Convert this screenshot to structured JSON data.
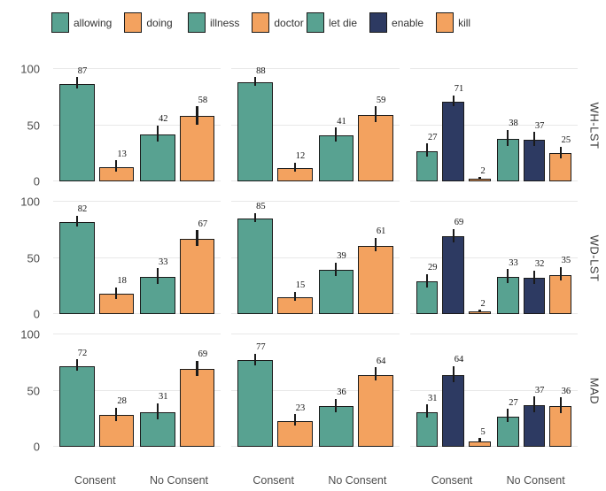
{
  "chart_data": {
    "type": "bar",
    "title": "",
    "xlabel": "",
    "ylabel": "",
    "ylim": [
      0,
      100
    ],
    "y_ticks": [
      0,
      50,
      100
    ],
    "grid": true,
    "x_categories": [
      "Consent",
      "No Consent"
    ],
    "facet_row_labels": [
      "WH-LST",
      "WD-LST",
      "MAD"
    ],
    "legend_groups": [
      {
        "entries": [
          {
            "label": "allowing",
            "color": "#58A291"
          },
          {
            "label": "doing",
            "color": "#F3A25F"
          }
        ]
      },
      {
        "entries": [
          {
            "label": "illness",
            "color": "#58A291"
          },
          {
            "label": "doctor",
            "color": "#F3A25F"
          }
        ]
      },
      {
        "entries": [
          {
            "label": "let die",
            "color": "#58A291"
          },
          {
            "label": "enable",
            "color": "#2D3A62"
          },
          {
            "label": "kill",
            "color": "#F3A25F"
          }
        ]
      }
    ],
    "panels": [
      {
        "facet_row": "WH-LST",
        "facet_col": 0,
        "groups": [
          {
            "category": "Consent",
            "bars": [
              {
                "series": "allowing",
                "value": 87,
                "error": 5
              },
              {
                "series": "doing",
                "value": 13,
                "error": 5
              }
            ]
          },
          {
            "category": "No Consent",
            "bars": [
              {
                "series": "allowing",
                "value": 42,
                "error": 7
              },
              {
                "series": "doing",
                "value": 58,
                "error": 8
              }
            ]
          }
        ]
      },
      {
        "facet_row": "WH-LST",
        "facet_col": 1,
        "groups": [
          {
            "category": "Consent",
            "bars": [
              {
                "series": "illness",
                "value": 88,
                "error": 4
              },
              {
                "series": "doctor",
                "value": 12,
                "error": 4
              }
            ]
          },
          {
            "category": "No Consent",
            "bars": [
              {
                "series": "illness",
                "value": 41,
                "error": 6
              },
              {
                "series": "doctor",
                "value": 59,
                "error": 7
              }
            ]
          }
        ]
      },
      {
        "facet_row": "WH-LST",
        "facet_col": 2,
        "groups": [
          {
            "category": "Consent",
            "bars": [
              {
                "series": "let die",
                "value": 27,
                "error": 6
              },
              {
                "series": "enable",
                "value": 71,
                "error": 5
              },
              {
                "series": "kill",
                "value": 2,
                "error": 1
              }
            ]
          },
          {
            "category": "No Consent",
            "bars": [
              {
                "series": "let die",
                "value": 38,
                "error": 7
              },
              {
                "series": "enable",
                "value": 37,
                "error": 6
              },
              {
                "series": "kill",
                "value": 25,
                "error": 5
              }
            ]
          }
        ]
      },
      {
        "facet_row": "WD-LST",
        "facet_col": 0,
        "groups": [
          {
            "category": "Consent",
            "bars": [
              {
                "series": "allowing",
                "value": 82,
                "error": 5
              },
              {
                "series": "doing",
                "value": 18,
                "error": 5
              }
            ]
          },
          {
            "category": "No Consent",
            "bars": [
              {
                "series": "allowing",
                "value": 33,
                "error": 7
              },
              {
                "series": "doing",
                "value": 67,
                "error": 7
              }
            ]
          }
        ]
      },
      {
        "facet_row": "WD-LST",
        "facet_col": 1,
        "groups": [
          {
            "category": "Consent",
            "bars": [
              {
                "series": "illness",
                "value": 85,
                "error": 4
              },
              {
                "series": "doctor",
                "value": 15,
                "error": 4
              }
            ]
          },
          {
            "category": "No Consent",
            "bars": [
              {
                "series": "illness",
                "value": 39,
                "error": 6
              },
              {
                "series": "doctor",
                "value": 61,
                "error": 6
              }
            ]
          }
        ]
      },
      {
        "facet_row": "WD-LST",
        "facet_col": 2,
        "groups": [
          {
            "category": "Consent",
            "bars": [
              {
                "series": "let die",
                "value": 29,
                "error": 6
              },
              {
                "series": "enable",
                "value": 69,
                "error": 6
              },
              {
                "series": "kill",
                "value": 2,
                "error": 1
              }
            ]
          },
          {
            "category": "No Consent",
            "bars": [
              {
                "series": "let die",
                "value": 33,
                "error": 6
              },
              {
                "series": "enable",
                "value": 32,
                "error": 6
              },
              {
                "series": "kill",
                "value": 35,
                "error": 6
              }
            ]
          }
        ]
      },
      {
        "facet_row": "MAD",
        "facet_col": 0,
        "groups": [
          {
            "category": "Consent",
            "bars": [
              {
                "series": "allowing",
                "value": 72,
                "error": 5
              },
              {
                "series": "doing",
                "value": 28,
                "error": 6
              }
            ]
          },
          {
            "category": "No Consent",
            "bars": [
              {
                "series": "allowing",
                "value": 31,
                "error": 7
              },
              {
                "series": "doing",
                "value": 69,
                "error": 7
              }
            ]
          }
        ]
      },
      {
        "facet_row": "MAD",
        "facet_col": 1,
        "groups": [
          {
            "category": "Consent",
            "bars": [
              {
                "series": "illness",
                "value": 77,
                "error": 5
              },
              {
                "series": "doctor",
                "value": 23,
                "error": 5
              }
            ]
          },
          {
            "category": "No Consent",
            "bars": [
              {
                "series": "illness",
                "value": 36,
                "error": 6
              },
              {
                "series": "doctor",
                "value": 64,
                "error": 6
              }
            ]
          }
        ]
      },
      {
        "facet_row": "MAD",
        "facet_col": 2,
        "groups": [
          {
            "category": "Consent",
            "bars": [
              {
                "series": "let die",
                "value": 31,
                "error": 6
              },
              {
                "series": "enable",
                "value": 64,
                "error": 7
              },
              {
                "series": "kill",
                "value": 5,
                "error": 2
              }
            ]
          },
          {
            "category": "No Consent",
            "bars": [
              {
                "series": "let die",
                "value": 27,
                "error": 6
              },
              {
                "series": "enable",
                "value": 37,
                "error": 7
              },
              {
                "series": "kill",
                "value": 36,
                "error": 7
              }
            ]
          }
        ]
      }
    ],
    "style": {
      "bar_outline_color": "#1a1a1a",
      "error_bar_color": "#1a1a1a",
      "gridline_color": "#e8e8e8",
      "axis_text_color": "#4d4d4d",
      "background": "#ffffff"
    }
  }
}
